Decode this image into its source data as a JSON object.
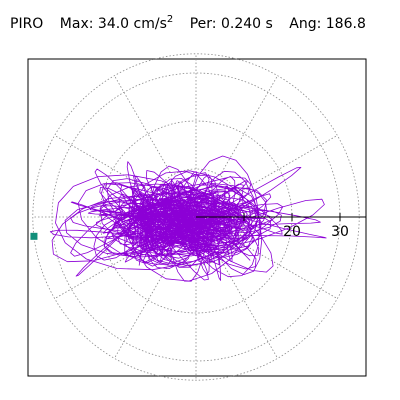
{
  "header": {
    "station": "PIRO",
    "max_label": "Max:",
    "max_value": "34.0",
    "max_unit": "cm/s",
    "max_unit_exp": "2",
    "per_label": "Per:",
    "per_value": "0.240 s",
    "ang_label": "Ang:",
    "ang_value": "186.8"
  },
  "chart_data": {
    "type": "polar-orbit",
    "radial_unit": "cm/s2",
    "radial_max": 34.0,
    "rings": [
      10,
      20,
      30
    ],
    "ring_labels": [
      "20",
      "30"
    ],
    "angular_gridlines_deg": [
      0,
      30,
      60,
      90,
      120,
      150,
      180,
      210,
      240,
      270,
      300,
      330
    ],
    "peak": {
      "angle_deg": 186.8,
      "amplitude": 34.0
    },
    "grid": true,
    "colors": {
      "trace": "#8c00d6",
      "peak_marker": "#118f7a",
      "grid": "#888888",
      "axis": "#000000"
    }
  }
}
